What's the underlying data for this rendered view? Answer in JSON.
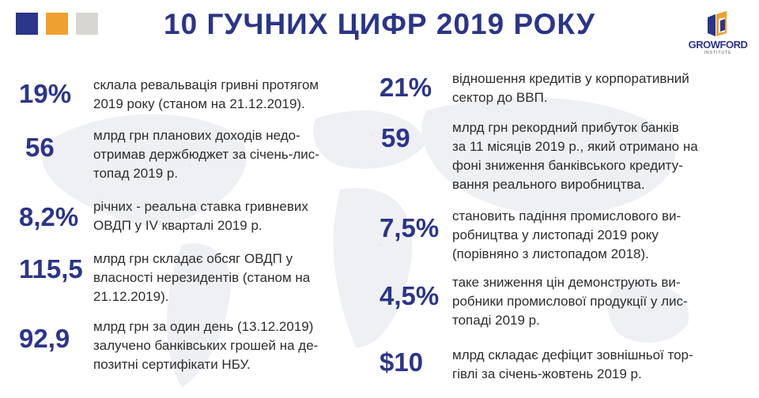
{
  "header": {
    "title": "10 ГУЧНИХ ЦИФР 2019 РОКУ",
    "squares_colors": [
      "#2b3589",
      "#f0a030",
      "#d8d6d2"
    ],
    "logo": {
      "name": "GROWFORD",
      "sub": "INSTITUTE"
    }
  },
  "colors": {
    "accent": "#2b3589",
    "text": "#2d2d2d"
  },
  "facts": [
    {
      "number": "19%",
      "lines": [
        "склала ревальвація гривні протягом",
        "2019 року (станом на 21.12.2019)."
      ]
    },
    {
      "number": "56",
      "lines": [
        "млрд грн планових доходів недо-",
        "отримав держбюджет за січень-лис-",
        "топад 2019 р."
      ]
    },
    {
      "number": "8,2%",
      "lines": [
        "річних - реальна ставка гривневих",
        "ОВДП у IV кварталі 2019 р."
      ]
    },
    {
      "number": "115,5",
      "lines": [
        "млрд грн складає обсяг ОВДП у",
        "власності нерезидентів (станом на",
        "21.12.2019)."
      ]
    },
    {
      "number": "92,9",
      "lines": [
        "млрд грн за один день (13.12.2019)",
        "залучено банківських грошей на де-",
        "позитні сертифікати НБУ."
      ]
    },
    {
      "number": "21%",
      "lines": [
        "відношення кредитів у корпоративний",
        "сектор до ВВП."
      ]
    },
    {
      "number": "59",
      "lines": [
        "млрд грн рекордний прибуток банків",
        "за 11 місяців 2019 р., який отримано на",
        "фоні зниження банківського кредиту-",
        "вання реального виробництва."
      ]
    },
    {
      "number": "7,5%",
      "lines": [
        "становить падіння промислового ви-",
        "робництва у листопаді 2019 року",
        "(порівняно з листопадом 2018)."
      ]
    },
    {
      "number": "4,5%",
      "lines": [
        "таке зниження цін демонструють ви-",
        "робники промислової продукції у лис-",
        "топаді 2019 р."
      ]
    },
    {
      "number": "$10",
      "lines": [
        "млрд складає дефіцит зовнішньої тор-",
        "гівлі за січень-жовтень 2019 р."
      ]
    }
  ]
}
